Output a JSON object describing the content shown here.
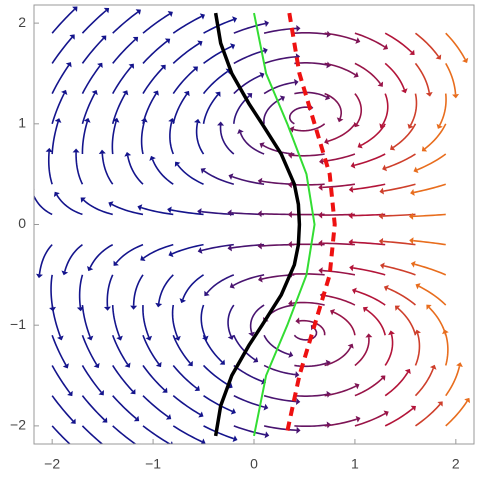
{
  "chart_data": {
    "type": "line",
    "xlim": [
      -2.18,
      2.18
    ],
    "ylim": [
      -2.18,
      2.18
    ],
    "xticks": [
      {
        "value": -2,
        "label": "−2"
      },
      {
        "value": -1,
        "label": "−1"
      },
      0,
      1,
      2
    ],
    "yticks": [
      {
        "value": -2,
        "label": "−2"
      },
      {
        "value": -1,
        "label": "−1"
      },
      0,
      1,
      2
    ],
    "series": [
      {
        "color": "#000000",
        "style": "solid",
        "width": 3.5,
        "y": [
          2.1,
          1.8,
          1.5,
          1.2,
          1.0,
          0.7,
          0.4,
          0.2,
          0,
          -0.2,
          -0.4,
          -0.7,
          -1.0,
          -1.2,
          -1.5,
          -1.8,
          -2.1
        ],
        "x": [
          -0.38,
          -0.33,
          -0.22,
          -0.05,
          0.08,
          0.27,
          0.4,
          0.44,
          0.45,
          0.44,
          0.4,
          0.27,
          0.08,
          -0.05,
          -0.22,
          -0.33,
          -0.38
        ]
      },
      {
        "color": "#33dd33",
        "style": "solid",
        "width": 2,
        "y": [
          2.1,
          1.5,
          1.0,
          0.5,
          0,
          -0.5,
          -1.0,
          -1.5,
          -2.1
        ],
        "x": [
          0,
          0.12,
          0.33,
          0.52,
          0.6,
          0.52,
          0.33,
          0.12,
          0
        ]
      },
      {
        "color": "#ee1111",
        "style": "dashed",
        "width": 4,
        "y": [
          2.1,
          1.5,
          1.0,
          0.5,
          0,
          -0.5,
          -1.0,
          -1.5,
          -2.1
        ],
        "x": [
          0.35,
          0.45,
          0.6,
          0.75,
          0.8,
          0.75,
          0.6,
          0.45,
          0.32
        ]
      }
    ]
  }
}
